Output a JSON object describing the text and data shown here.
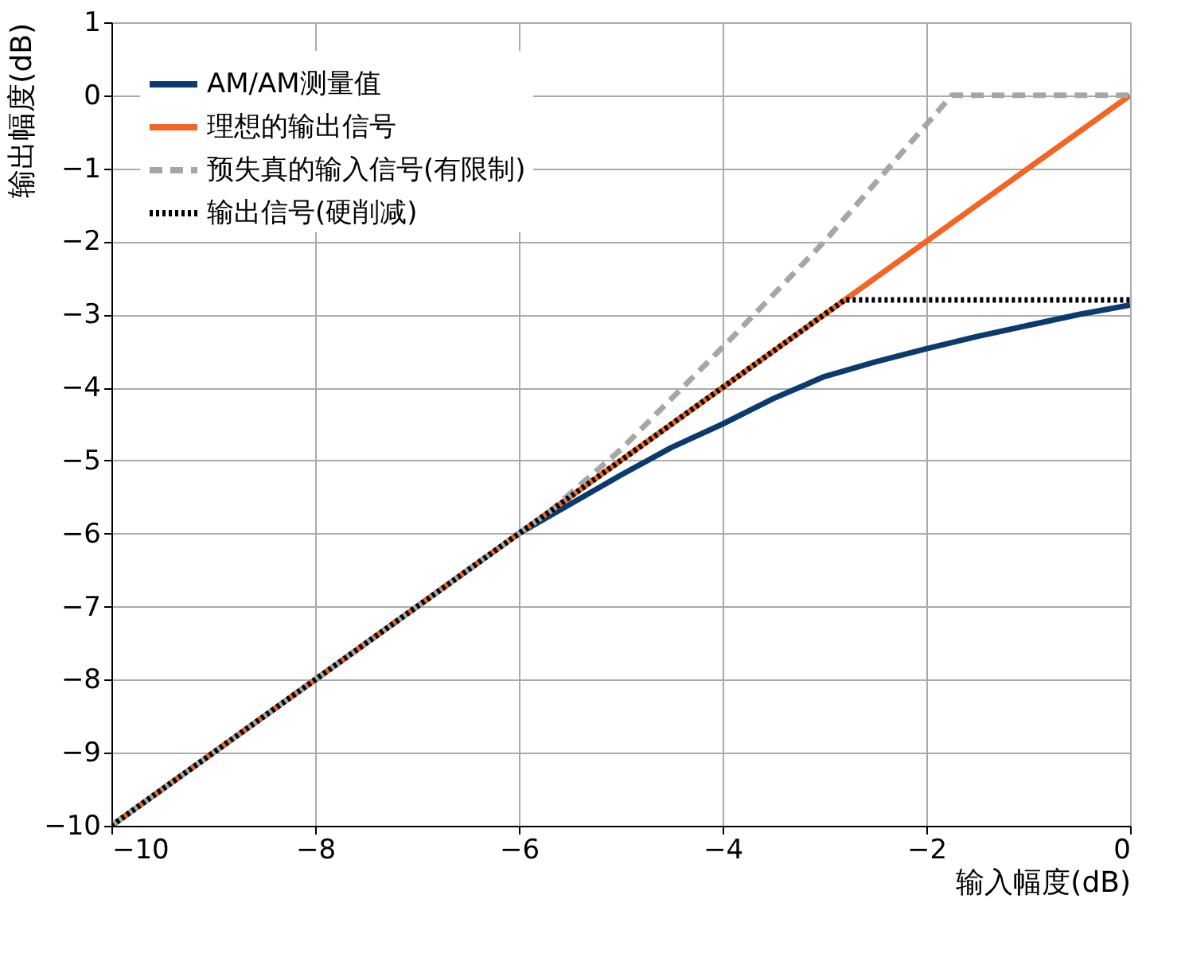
{
  "chart_data": {
    "type": "line",
    "xlabel": "输入幅度(dB)",
    "ylabel": "输出幅度(dB)",
    "xlim": [
      -10,
      0
    ],
    "ylim": [
      -10,
      1
    ],
    "xticks": [
      {
        "value": -10,
        "label": "−10"
      },
      {
        "value": -8,
        "label": "−8"
      },
      {
        "value": -6,
        "label": "−6"
      },
      {
        "value": -4,
        "label": "−4"
      },
      {
        "value": -2,
        "label": "−2"
      },
      0
    ],
    "yticks": [
      {
        "value": -10,
        "label": "−10"
      },
      {
        "value": -9,
        "label": "−9"
      },
      {
        "value": -8,
        "label": "−8"
      },
      {
        "value": -7,
        "label": "−7"
      },
      {
        "value": -6,
        "label": "−6"
      },
      {
        "value": -5,
        "label": "−5"
      },
      {
        "value": -4,
        "label": "−4"
      },
      {
        "value": -3,
        "label": "−3"
      },
      {
        "value": -2,
        "label": "−2"
      },
      {
        "value": -1,
        "label": "−1"
      },
      0,
      1
    ],
    "grid": true,
    "legend": "top left",
    "marker": "none",
    "series": [
      {
        "name": "AM/AM测量值",
        "color": "#0b3b6e",
        "line_style": "solid",
        "x": [
          -10,
          -6,
          -5.5,
          -5,
          -4.5,
          -4,
          -3.5,
          -3,
          -2.5,
          -2,
          -1.5,
          -1,
          -0.5,
          0
        ],
        "values": [
          -10,
          -6,
          -5.6,
          -5.2,
          -4.82,
          -4.5,
          -4.15,
          -3.85,
          -3.65,
          -3.47,
          -3.3,
          -3.15,
          -3.0,
          -2.87
        ]
      },
      {
        "name": "理想的输出信号",
        "color": "#f26522",
        "line_style": "solid",
        "x": [
          -10,
          0
        ],
        "values": [
          -10,
          0
        ]
      },
      {
        "name": "预失真的输入信号(有限制)",
        "color": "#a6a6a6",
        "line_style": "dashed",
        "x": [
          -10,
          -5.7,
          -5,
          -4,
          -3,
          -2,
          -1.75,
          0
        ],
        "values": [
          -10,
          -5.7,
          -4.85,
          -3.45,
          -2.0,
          -0.4,
          0,
          0
        ]
      },
      {
        "name": "输出信号(硬削减)",
        "color": "#000000",
        "line_style": "dotted",
        "x": [
          -10,
          -2.8,
          0
        ],
        "values": [
          -10,
          -2.8,
          -2.8
        ]
      }
    ]
  }
}
